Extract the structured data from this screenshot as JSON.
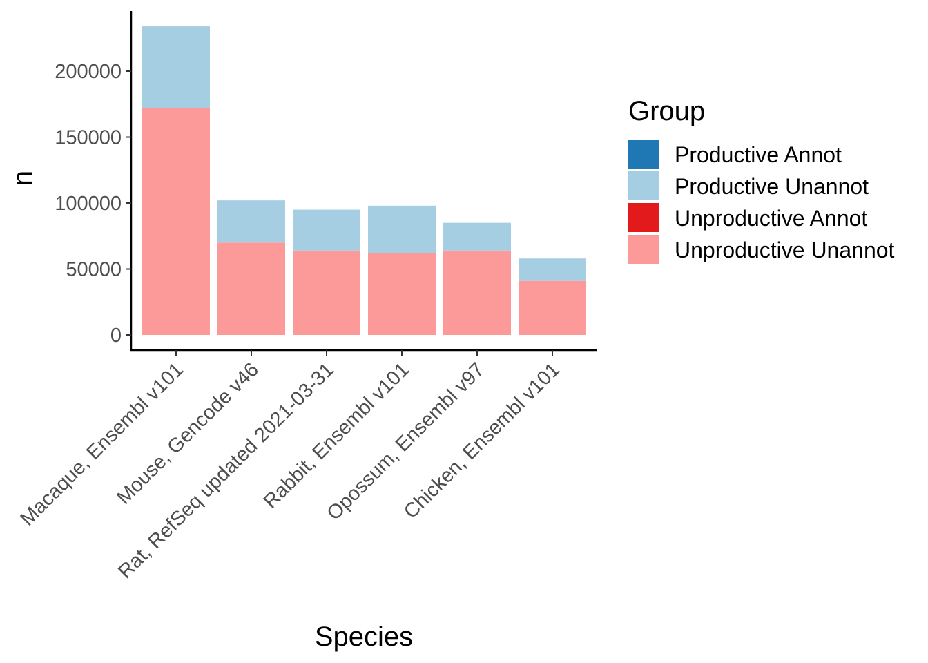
{
  "chart_data": {
    "type": "bar",
    "stacked": true,
    "title": "",
    "xlabel": "Species",
    "ylabel": "n",
    "ylim": [
      0,
      245000
    ],
    "yticks": [
      0,
      50000,
      100000,
      150000,
      200000
    ],
    "categories": [
      "Macaque, Ensembl v101",
      "Mouse, Gencode v46",
      "Rat, RefSeq updated 2021-03-31",
      "Rabbit, Ensembl v101",
      "Opossum, Ensembl v97",
      "Chicken, Ensembl v101"
    ],
    "series": [
      {
        "name": "Productive Annot",
        "color": "#1f78b4",
        "values": [
          0,
          0,
          0,
          0,
          0,
          0
        ]
      },
      {
        "name": "Productive Unannot",
        "color": "#a6cee3",
        "values": [
          62000,
          32000,
          31000,
          36000,
          21000,
          17000
        ]
      },
      {
        "name": "Unproductive Annot",
        "color": "#e31a1c",
        "values": [
          0,
          0,
          0,
          0,
          0,
          0
        ]
      },
      {
        "name": "Unproductive Unannot",
        "color": "#fb9a99",
        "values": [
          172000,
          70000,
          64000,
          62000,
          64000,
          41000
        ]
      }
    ],
    "stack_order_bottom_to_top": [
      "Unproductive Unannot",
      "Unproductive Annot",
      "Productive Unannot",
      "Productive Annot"
    ],
    "legend": {
      "title": "Group",
      "position": "right"
    },
    "grid": false
  }
}
